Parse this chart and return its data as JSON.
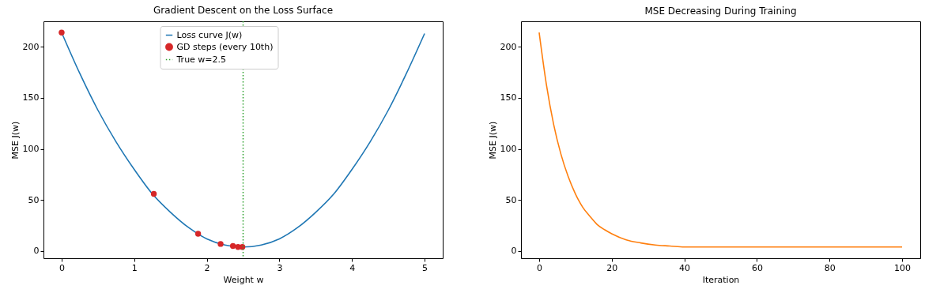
{
  "chart_data": [
    {
      "type": "line",
      "title": "Gradient Descent on the Loss Surface",
      "xlabel": "Weight w",
      "ylabel": "MSE J(w)",
      "x": [
        0,
        0.25,
        0.5,
        0.75,
        1,
        1.25,
        1.5,
        1.75,
        2,
        2.25,
        2.5,
        2.75,
        3,
        3.25,
        3.5,
        3.75,
        4,
        4.25,
        4.5,
        4.75,
        5
      ],
      "series": [
        {
          "name": "Loss curve J(w)",
          "color": "#1f77b4",
          "values": [
            214,
            174,
            138,
            107,
            80,
            56,
            38,
            23,
            12,
            6,
            4,
            6,
            12,
            23,
            38,
            56,
            80,
            107,
            138,
            174,
            213
          ]
        },
        {
          "name": "GD steps (every 10th)",
          "type": "scatter",
          "color": "#d62728",
          "marker": "circle",
          "x": [
            0,
            1.27,
            1.88,
            2.19,
            2.36,
            2.43,
            2.49
          ],
          "values": [
            214,
            56,
            17,
            7,
            5,
            4,
            4
          ]
        }
      ],
      "ref_lines": [
        {
          "axis": "x",
          "value": 2.5,
          "label": "True w=2.5",
          "color": "#2ca02c",
          "line_style": "dotted"
        }
      ],
      "xlim": [
        -0.25,
        5.25
      ],
      "ylim": [
        -7,
        225
      ],
      "xticks": [
        0,
        1,
        2,
        3,
        4,
        5
      ],
      "yticks": [
        0,
        50,
        100,
        150,
        200
      ],
      "grid": false,
      "legend": "top"
    },
    {
      "type": "line",
      "title": "MSE Decreasing During Training",
      "xlabel": "Iteration",
      "ylabel": "MSE J(w)",
      "x": [
        0,
        2,
        4,
        6,
        8,
        10,
        12,
        14,
        16,
        18,
        20,
        24,
        28,
        32,
        36,
        40,
        50,
        60,
        70,
        80,
        90,
        100
      ],
      "series": [
        {
          "color": "#ff7f0e",
          "values": [
            214,
            163,
            124,
            95,
            73,
            56,
            43,
            34,
            26,
            21,
            17,
            11,
            8,
            6,
            5,
            4,
            4,
            4,
            4,
            4,
            4,
            4
          ]
        }
      ],
      "xlim": [
        -5,
        105
      ],
      "ylim": [
        -7,
        225
      ],
      "xticks": [
        0,
        20,
        40,
        60,
        80,
        100
      ],
      "yticks": [
        0,
        50,
        100,
        150,
        200
      ],
      "grid": false,
      "legend": false
    }
  ]
}
